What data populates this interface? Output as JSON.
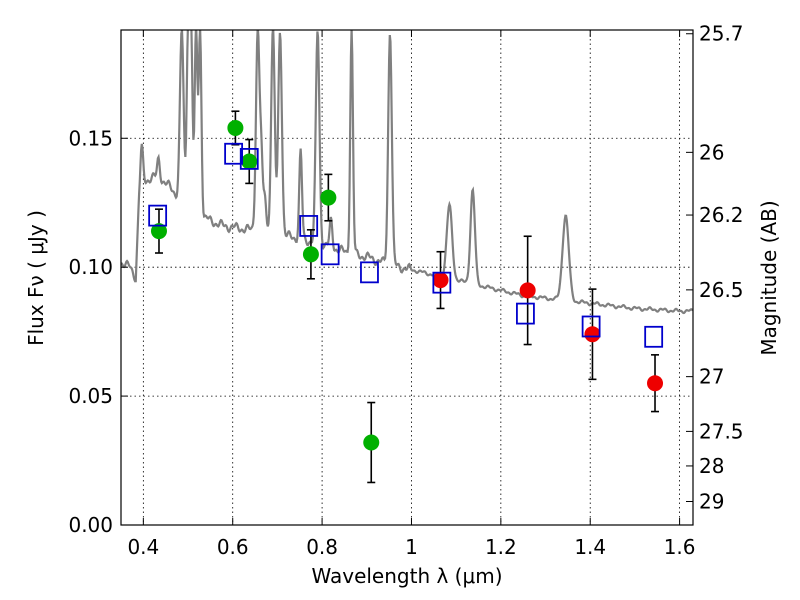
{
  "chart_data": {
    "type": "scatter",
    "xlabel": "Wavelength  λ (μm)",
    "ylabel_left": "Flux  Fν  ( μJy )",
    "ylabel_right": "Magnitude (AB)",
    "xlim": [
      0.35,
      1.63
    ],
    "ylim": [
      0.0,
      0.192
    ],
    "grid": true,
    "x_ticks": [
      0.4,
      0.6,
      0.8,
      1.0,
      1.2,
      1.4,
      1.6
    ],
    "x_tick_labels": [
      "0.4",
      "0.6",
      "0.8",
      "1",
      "1.2",
      "1.4",
      "1.6"
    ],
    "y_ticks": [
      0.0,
      0.05,
      0.1,
      0.15
    ],
    "y_tick_labels": [
      "0.00",
      "0.05",
      "0.10",
      "0.15"
    ],
    "mag_ticks": [
      25.7,
      26,
      26.2,
      26.5,
      27,
      27.5,
      28,
      29
    ],
    "mag_tick_labels": [
      "25.7",
      "26",
      "26.2",
      "26.5",
      "27",
      "27.5",
      "28",
      "29"
    ],
    "colors": {
      "green": "#00b000",
      "red": "#ee0000",
      "model_box": "#0000cc",
      "spectrum": "#808080",
      "errorbar": "#000000"
    },
    "series": [
      {
        "marker": "circle",
        "color": "#00b000",
        "points": [
          {
            "x": 0.435,
            "y": 0.114,
            "err": 0.0085
          },
          {
            "x": 0.606,
            "y": 0.154,
            "err": 0.0065
          },
          {
            "x": 0.637,
            "y": 0.141,
            "err": 0.0085
          },
          {
            "x": 0.775,
            "y": 0.105,
            "err": 0.0095
          },
          {
            "x": 0.814,
            "y": 0.127,
            "err": 0.009
          },
          {
            "x": 0.91,
            "y": 0.032,
            "err": 0.0155
          }
        ]
      },
      {
        "marker": "circle",
        "color": "#ee0000",
        "points": [
          {
            "x": 1.065,
            "y": 0.095,
            "err": 0.011
          },
          {
            "x": 1.26,
            "y": 0.091,
            "err": 0.021
          },
          {
            "x": 1.405,
            "y": 0.074,
            "err": 0.0175
          },
          {
            "x": 1.545,
            "y": 0.055,
            "err": 0.011
          }
        ]
      },
      {
        "marker": "square",
        "color": "#0000cc",
        "points": [
          {
            "x": 0.432,
            "y": 0.12
          },
          {
            "x": 0.602,
            "y": 0.144
          },
          {
            "x": 0.637,
            "y": 0.142
          },
          {
            "x": 0.77,
            "y": 0.116
          },
          {
            "x": 0.818,
            "y": 0.105
          },
          {
            "x": 0.906,
            "y": 0.098
          },
          {
            "x": 1.068,
            "y": 0.094
          },
          {
            "x": 1.255,
            "y": 0.082
          },
          {
            "x": 1.402,
            "y": 0.077
          },
          {
            "x": 1.542,
            "y": 0.073
          }
        ]
      }
    ],
    "spectrum": {
      "color": "#808080",
      "continuum": [
        [
          0.35,
          0.102
        ],
        [
          0.37,
          0.1
        ],
        [
          0.38,
          0.097
        ],
        [
          0.383,
          0.096
        ],
        [
          0.39,
          0.125
        ],
        [
          0.4,
          0.133
        ],
        [
          0.42,
          0.135
        ],
        [
          0.44,
          0.134
        ],
        [
          0.46,
          0.131
        ],
        [
          0.48,
          0.127
        ],
        [
          0.5,
          0.123
        ],
        [
          0.52,
          0.121
        ],
        [
          0.55,
          0.118
        ],
        [
          0.58,
          0.116
        ],
        [
          0.62,
          0.115
        ],
        [
          0.66,
          0.114
        ],
        [
          0.7,
          0.113
        ],
        [
          0.75,
          0.111
        ],
        [
          0.8,
          0.109
        ],
        [
          0.85,
          0.106
        ],
        [
          0.9,
          0.104
        ],
        [
          0.95,
          0.101
        ],
        [
          1.0,
          0.099
        ],
        [
          1.05,
          0.097
        ],
        [
          1.1,
          0.095
        ],
        [
          1.15,
          0.093
        ],
        [
          1.2,
          0.091
        ],
        [
          1.25,
          0.089
        ],
        [
          1.3,
          0.088
        ],
        [
          1.35,
          0.087
        ],
        [
          1.4,
          0.086
        ],
        [
          1.45,
          0.085
        ],
        [
          1.5,
          0.084
        ],
        [
          1.55,
          0.0835
        ],
        [
          1.6,
          0.083
        ],
        [
          1.63,
          0.083
        ]
      ],
      "lines": [
        {
          "x": 0.396,
          "peak": 0.146,
          "w": 0.003
        },
        {
          "x": 0.434,
          "peak": 0.142,
          "w": 0.003
        },
        {
          "x": 0.486,
          "peak": 0.192,
          "w": 0.004
        },
        {
          "x": 0.5,
          "peak": 0.192,
          "w": 0.003
        },
        {
          "x": 0.507,
          "peak": 0.192,
          "w": 0.003
        },
        {
          "x": 0.518,
          "peak": 0.192,
          "w": 0.003
        },
        {
          "x": 0.527,
          "peak": 0.192,
          "w": 0.003
        },
        {
          "x": 0.656,
          "peak": 0.192,
          "w": 0.004
        },
        {
          "x": 0.664,
          "peak": 0.14,
          "w": 0.003
        },
        {
          "x": 0.672,
          "peak": 0.128,
          "w": 0.003
        },
        {
          "x": 0.69,
          "peak": 0.192,
          "w": 0.004
        },
        {
          "x": 0.706,
          "peak": 0.192,
          "w": 0.004
        },
        {
          "x": 0.752,
          "peak": 0.145,
          "w": 0.003
        },
        {
          "x": 0.79,
          "peak": 0.192,
          "w": 0.004
        },
        {
          "x": 0.82,
          "peak": 0.118,
          "w": 0.003
        },
        {
          "x": 0.866,
          "peak": 0.192,
          "w": 0.003
        },
        {
          "x": 0.952,
          "peak": 0.192,
          "w": 0.004
        },
        {
          "x": 1.085,
          "peak": 0.124,
          "w": 0.006
        },
        {
          "x": 1.137,
          "peak": 0.13,
          "w": 0.005
        },
        {
          "x": 1.345,
          "peak": 0.12,
          "w": 0.007
        }
      ]
    }
  }
}
